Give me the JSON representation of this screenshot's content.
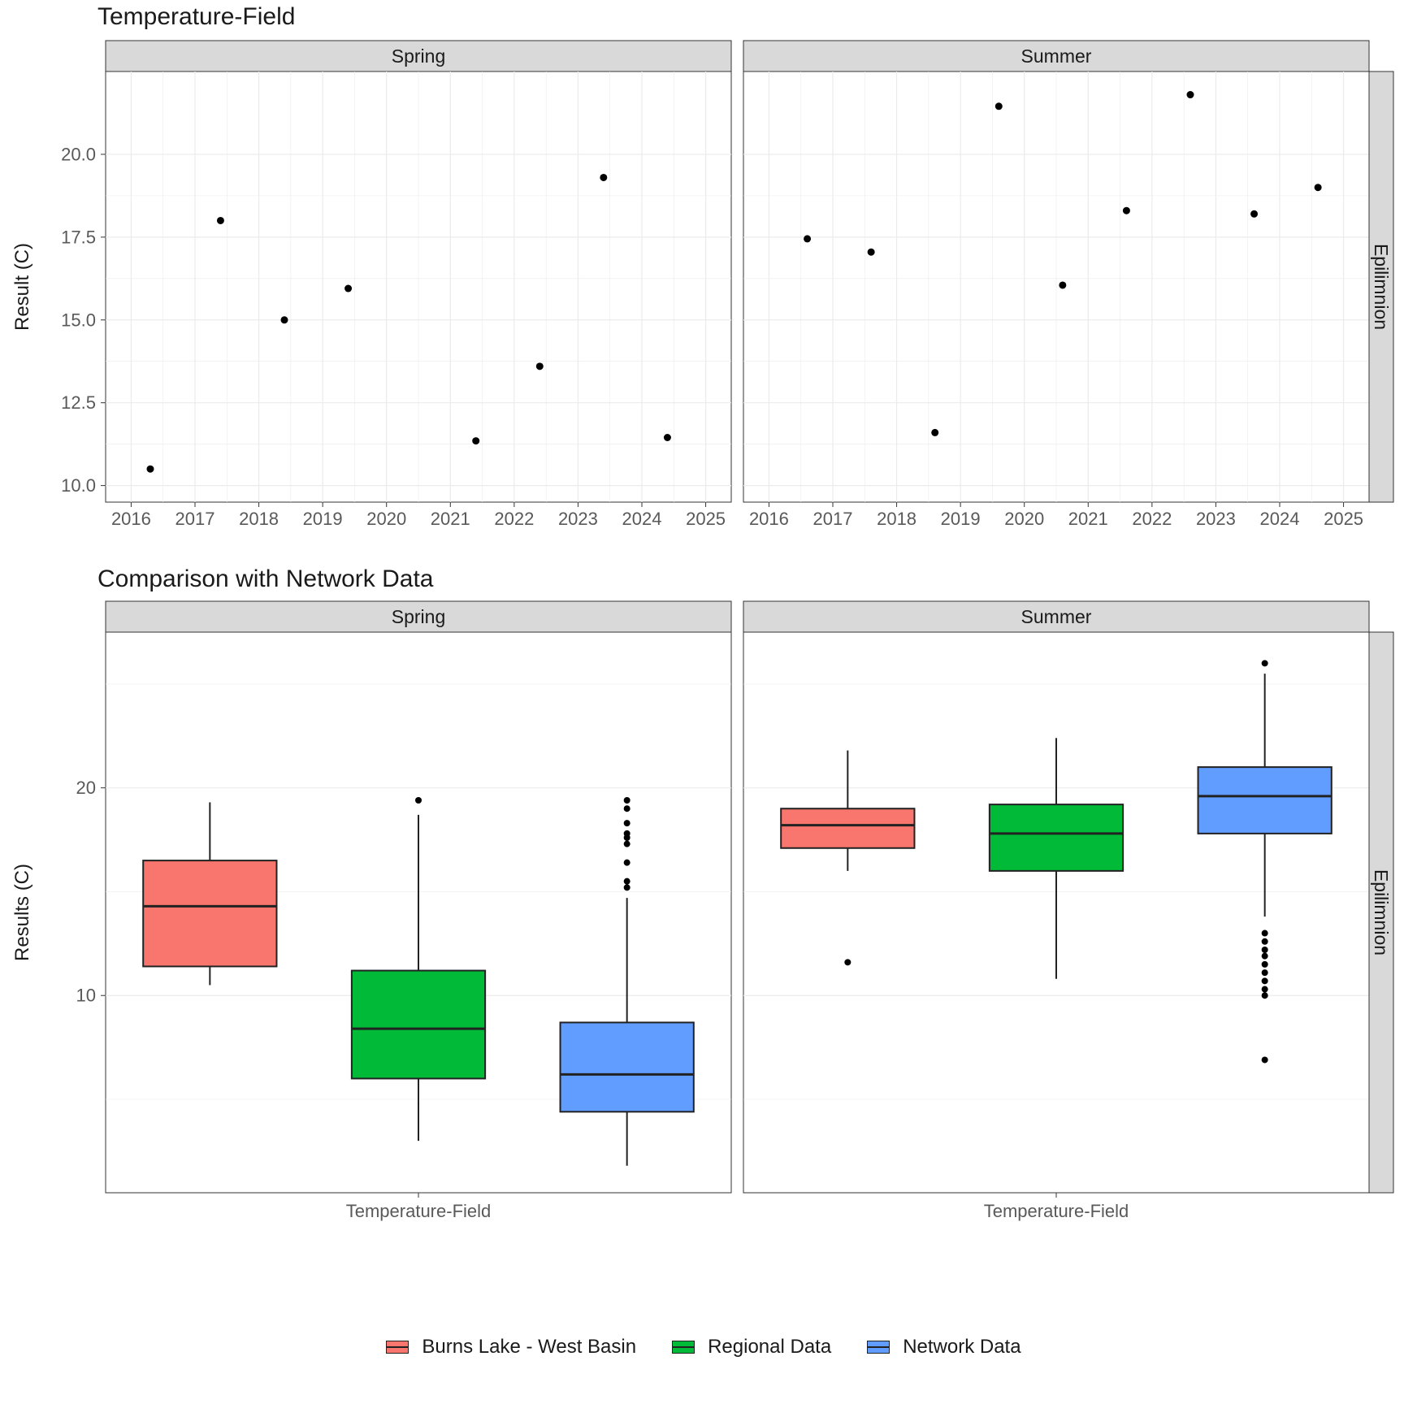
{
  "scatter": {
    "title": "Temperature-Field",
    "ylabel": "Result (C)",
    "facets": [
      "Spring",
      "Summer"
    ],
    "right_strip": "Epilimnion",
    "x_ticks": [
      2016,
      2017,
      2018,
      2019,
      2020,
      2021,
      2022,
      2023,
      2024,
      2025
    ],
    "y_ticks": [
      10.0,
      12.5,
      15.0,
      17.5,
      20.0
    ],
    "y_tick_labels": [
      "10.0",
      "12.5",
      "15.0",
      "17.5",
      "20.0"
    ],
    "xlim": [
      2015.6,
      2025.4
    ],
    "ylim": [
      9.5,
      22.5
    ],
    "grid_color": "#ebebeb",
    "point_color": "#000000",
    "point_radius": 4.5,
    "spring_points": [
      {
        "x": 2016.3,
        "y": 10.5
      },
      {
        "x": 2017.4,
        "y": 18.0
      },
      {
        "x": 2018.4,
        "y": 15.0
      },
      {
        "x": 2019.4,
        "y": 15.95
      },
      {
        "x": 2021.4,
        "y": 11.35
      },
      {
        "x": 2022.4,
        "y": 13.6
      },
      {
        "x": 2023.4,
        "y": 19.3
      },
      {
        "x": 2024.4,
        "y": 11.45
      }
    ],
    "summer_points": [
      {
        "x": 2016.6,
        "y": 17.45
      },
      {
        "x": 2017.6,
        "y": 17.05
      },
      {
        "x": 2018.6,
        "y": 11.6
      },
      {
        "x": 2019.6,
        "y": 21.45
      },
      {
        "x": 2020.6,
        "y": 16.05
      },
      {
        "x": 2021.6,
        "y": 18.3
      },
      {
        "x": 2022.6,
        "y": 21.8
      },
      {
        "x": 2023.6,
        "y": 18.2
      },
      {
        "x": 2024.6,
        "y": 19.0
      }
    ]
  },
  "boxplot": {
    "title": "Comparison with Network Data",
    "ylabel": "Results (C)",
    "facets": [
      "Spring",
      "Summer"
    ],
    "right_strip": "Epilimnion",
    "x_label": "Temperature-Field",
    "y_ticks": [
      10,
      20
    ],
    "y_tick_labels": [
      "10",
      "20"
    ],
    "ylim": [
      0.5,
      27.5
    ],
    "grid_color": "#ebebeb",
    "categories": [
      "Burns Lake - West Basin",
      "Regional Data",
      "Network Data"
    ],
    "colors": {
      "Burns Lake - West Basin": "#f8766d",
      "Regional Data": "#00ba38",
      "Network Data": "#619cff"
    },
    "stroke": "#222222",
    "box_halfwidth": 0.32,
    "spring": [
      {
        "cat": "Burns Lake - West Basin",
        "min": 10.5,
        "q1": 11.4,
        "med": 14.3,
        "q3": 16.5,
        "max": 19.3,
        "outliers": []
      },
      {
        "cat": "Regional Data",
        "min": 3.0,
        "q1": 6.0,
        "med": 8.4,
        "q3": 11.2,
        "max": 18.7,
        "outliers": [
          19.4
        ]
      },
      {
        "cat": "Network Data",
        "min": 1.8,
        "q1": 4.4,
        "med": 6.2,
        "q3": 8.7,
        "max": 14.7,
        "outliers": [
          15.2,
          15.5,
          16.4,
          17.3,
          17.6,
          17.8,
          18.3,
          19.0,
          19.4
        ]
      }
    ],
    "summer": [
      {
        "cat": "Burns Lake - West Basin",
        "min": 16.0,
        "q1": 17.1,
        "med": 18.2,
        "q3": 19.0,
        "max": 21.8,
        "outliers": [
          11.6
        ]
      },
      {
        "cat": "Regional Data",
        "min": 10.8,
        "q1": 16.0,
        "med": 17.8,
        "q3": 19.2,
        "max": 22.4,
        "outliers": []
      },
      {
        "cat": "Network Data",
        "min": 13.8,
        "q1": 17.8,
        "med": 19.6,
        "q3": 21.0,
        "max": 25.5,
        "outliers": [
          26.0,
          13.0,
          12.6,
          12.2,
          11.9,
          11.5,
          11.1,
          10.7,
          10.3,
          10.0,
          6.9
        ]
      }
    ]
  },
  "legend": {
    "items": [
      {
        "label": "Burns Lake - West Basin",
        "color": "#f8766d"
      },
      {
        "label": "Regional Data",
        "color": "#00ba38"
      },
      {
        "label": "Network Data",
        "color": "#619cff"
      }
    ]
  },
  "typography": {
    "title_fontsize": 30,
    "axis_title_fontsize": 24,
    "tick_fontsize": 22,
    "strip_fontsize": 23,
    "strip_bg": "#d9d9d9",
    "text_color": "#1a1a1a",
    "tick_color_light": "#595959"
  }
}
